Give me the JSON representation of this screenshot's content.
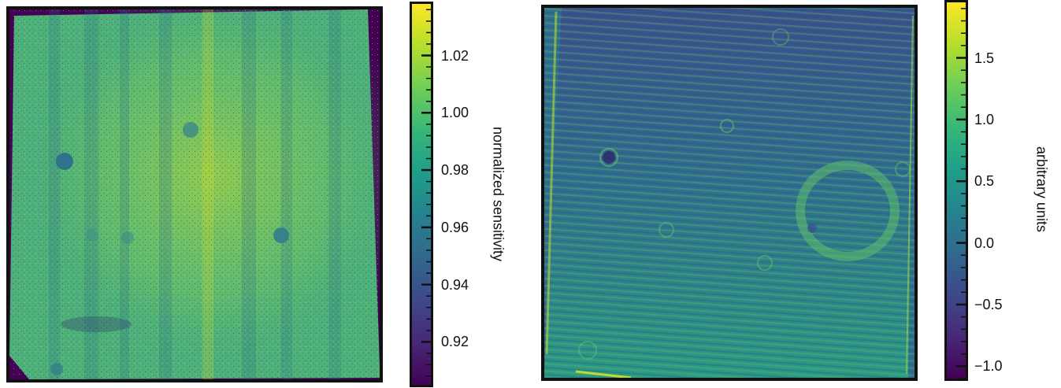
{
  "chart_data": [
    {
      "type": "heatmap",
      "title": "",
      "colormap": "viridis",
      "colorbar": {
        "label": "normalized sensitivity",
        "range": [
          0.905,
          1.038
        ],
        "ticks": [
          {
            "value": 1.02,
            "label": "1.02"
          },
          {
            "value": 1.0,
            "label": "1.00"
          },
          {
            "value": 0.98,
            "label": "0.98"
          },
          {
            "value": 0.96,
            "label": "0.96"
          },
          {
            "value": 0.94,
            "label": "0.94"
          },
          {
            "value": 0.92,
            "label": "0.92"
          }
        ],
        "minor_ticks": true
      },
      "description_features": "sensor flat-field with vertical banding, brighter center, dark circular spots",
      "background_color": "#440154"
    },
    {
      "type": "heatmap",
      "title": "",
      "colormap": "viridis",
      "colorbar": {
        "label": "arbitrary units",
        "range": [
          -1.1,
          1.95
        ],
        "ticks": [
          {
            "value": 1.5,
            "label": "1.5"
          },
          {
            "value": 1.0,
            "label": "1.0"
          },
          {
            "value": 0.5,
            "label": "0.5"
          },
          {
            "value": 0.0,
            "label": "0.0"
          },
          {
            "value": -0.5,
            "label": "−0.5"
          },
          {
            "value": -1.0,
            "label": "−1.0"
          }
        ],
        "minor_ticks": true
      },
      "description_features": "residual map with diagonal stripes, large ring and small circular features",
      "background_color": "#2c6f8e"
    }
  ]
}
